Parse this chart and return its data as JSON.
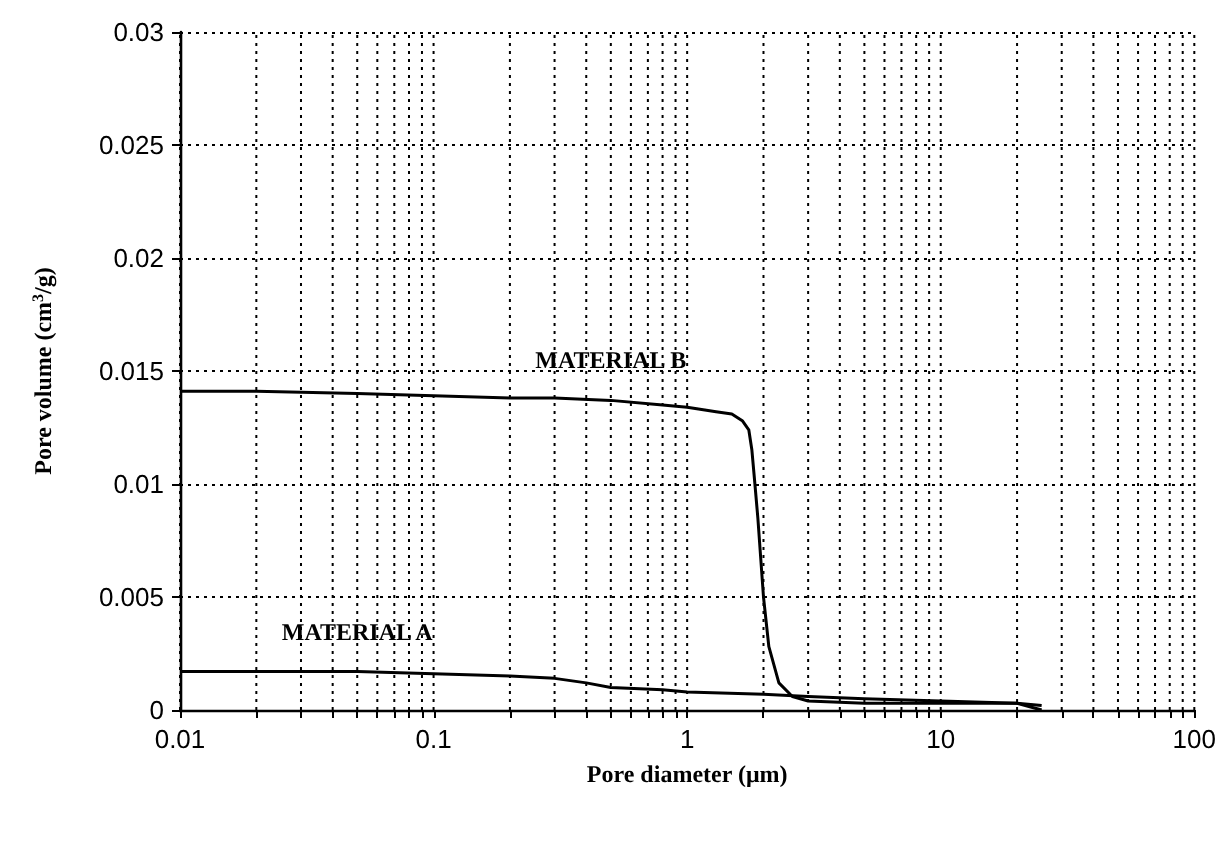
{
  "chart_data": {
    "type": "line",
    "xlabel": "Pore diameter (μm)",
    "ylabel": "Pore volume (cm$^{3}$/g)",
    "log": "x",
    "grid": true,
    "line_style": "solid",
    "marker": "none",
    "xlim": [
      0.01,
      100
    ],
    "ylim": [
      0,
      0.03
    ],
    "xticks": [
      0.01,
      {
        "value": 0.02,
        "label": null
      },
      {
        "value": 0.03,
        "label": null
      },
      {
        "value": 0.04,
        "label": null
      },
      {
        "value": 0.05,
        "label": null
      },
      {
        "value": 0.06,
        "label": null
      },
      {
        "value": 0.07,
        "label": null
      },
      {
        "value": 0.08,
        "label": null
      },
      {
        "value": 0.09,
        "label": null
      },
      0.1,
      {
        "value": 0.2,
        "label": null
      },
      {
        "value": 0.3,
        "label": null
      },
      {
        "value": 0.4,
        "label": null
      },
      {
        "value": 0.5,
        "label": null
      },
      {
        "value": 0.6,
        "label": null
      },
      {
        "value": 0.7,
        "label": null
      },
      {
        "value": 0.8,
        "label": null
      },
      {
        "value": 0.9,
        "label": null
      },
      1,
      {
        "value": 2,
        "label": null
      },
      {
        "value": 3,
        "label": null
      },
      {
        "value": 4,
        "label": null
      },
      {
        "value": 5,
        "label": null
      },
      {
        "value": 6,
        "label": null
      },
      {
        "value": 7,
        "label": null
      },
      {
        "value": 8,
        "label": null
      },
      {
        "value": 9,
        "label": null
      },
      10,
      {
        "value": 20,
        "label": null
      },
      {
        "value": 30,
        "label": null
      },
      {
        "value": 40,
        "label": null
      },
      {
        "value": 50,
        "label": null
      },
      {
        "value": 60,
        "label": null
      },
      {
        "value": 70,
        "label": null
      },
      {
        "value": 80,
        "label": null
      },
      {
        "value": 90,
        "label": null
      },
      100
    ],
    "yticks": [
      0,
      0.005,
      0.01,
      0.015,
      0.02,
      0.025,
      0.03
    ],
    "series": [
      {
        "name": "MATERIAL B",
        "color": "#000000",
        "x": [
          0.01,
          0.02,
          0.05,
          0.1,
          0.2,
          0.3,
          0.5,
          0.8,
          1,
          1.3,
          1.5,
          1.65,
          1.75,
          1.8,
          1.85,
          1.9,
          2,
          2.1,
          2.3,
          2.6,
          3,
          5,
          10,
          20,
          25
        ],
        "values": [
          0.0141,
          0.0141,
          0.014,
          0.0139,
          0.0138,
          0.0138,
          0.0137,
          0.0135,
          0.0134,
          0.0132,
          0.0131,
          0.0128,
          0.0124,
          0.0115,
          0.01,
          0.0085,
          0.005,
          0.0028,
          0.0012,
          0.0006,
          0.0004,
          0.0003,
          0.0003,
          0.0003,
          0.0002
        ]
      },
      {
        "name": "MATERIAL A",
        "color": "#000000",
        "x": [
          0.01,
          0.05,
          0.1,
          0.2,
          0.3,
          0.4,
          0.5,
          0.8,
          1,
          2,
          3,
          5,
          10,
          20,
          25
        ],
        "values": [
          0.0017,
          0.0017,
          0.0016,
          0.0015,
          0.0014,
          0.0012,
          0.001,
          0.0009,
          0.0008,
          0.0007,
          0.0006,
          0.0005,
          0.0004,
          0.0003,
          0.0
        ]
      }
    ]
  }
}
